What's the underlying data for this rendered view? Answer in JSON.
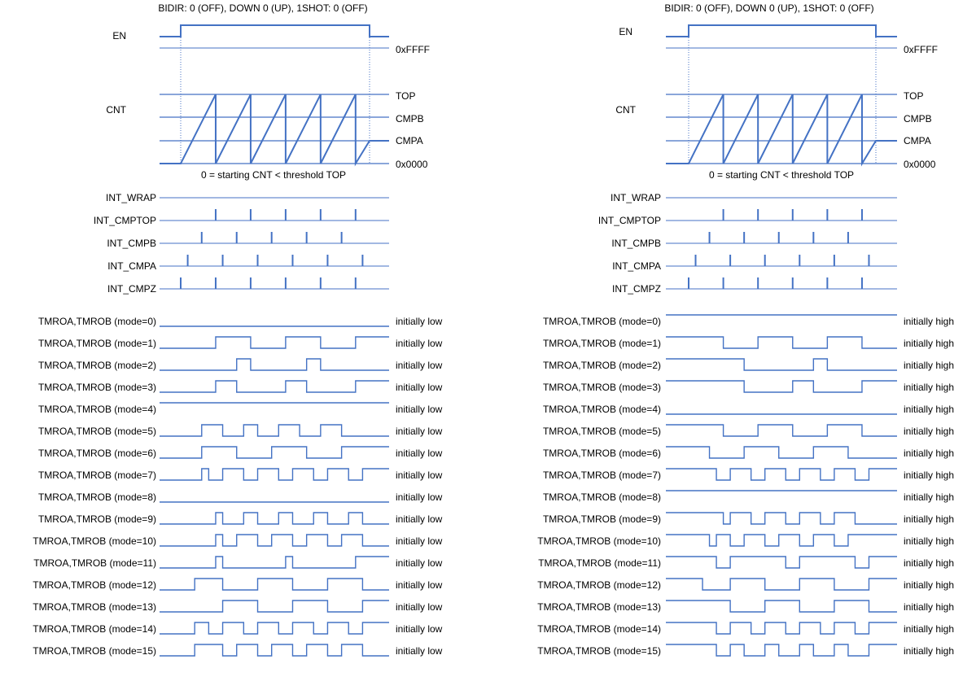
{
  "colors": {
    "trace": "#4472c4",
    "text": "#000000",
    "background": "#ffffff"
  },
  "panels": [
    {
      "id": "left",
      "header": "BIDIR: 0 (OFF), DOWN 0 (UP), 1SHOT: 0 (OFF)",
      "en_label": "EN",
      "cnt_label": "CNT",
      "levels": {
        "ffff": "0xFFFF",
        "top": "TOP",
        "cmpb": "CMPB",
        "cmpa": "CMPA",
        "zero": "0x0000"
      },
      "caption": "0 = starting CNT < threshold TOP",
      "interrupts": [
        {
          "label": "INT_WRAP",
          "ticks": []
        },
        {
          "label": "INT_CMPTOP",
          "ticks": [
            5,
            10,
            15,
            20,
            25
          ]
        },
        {
          "label": "INT_CMPB",
          "ticks": [
            3,
            8,
            13,
            18,
            23
          ]
        },
        {
          "label": "INT_CMPA",
          "ticks": [
            1,
            6,
            11,
            16,
            21,
            26
          ]
        },
        {
          "label": "INT_CMPZ",
          "ticks": [
            0,
            5,
            10,
            15,
            20,
            25
          ]
        }
      ],
      "outputs": [
        {
          "label": "TMROA,TMROB (mode=0)",
          "note": "initially low",
          "initial": 0,
          "toggles": []
        },
        {
          "label": "TMROA,TMROB (mode=1)",
          "note": "initially low",
          "initial": 0,
          "toggles": [
            5,
            10,
            15,
            20,
            25
          ]
        },
        {
          "label": "TMROA,TMROB (mode=2)",
          "note": "initially low",
          "initial": 0,
          "toggles": [
            8,
            10,
            18,
            20
          ]
        },
        {
          "label": "TMROA,TMROB (mode=3)",
          "note": "initially low",
          "initial": 0,
          "toggles": [
            5,
            8,
            15,
            18,
            25
          ]
        },
        {
          "label": "TMROA,TMROB (mode=4)",
          "note": "initially low",
          "initial": 1,
          "toggles": []
        },
        {
          "label": "TMROA,TMROB (mode=5)",
          "note": "initially low",
          "initial": 0,
          "toggles": [
            3,
            6,
            9,
            11,
            14,
            17,
            20,
            23
          ]
        },
        {
          "label": "TMROA,TMROB (mode=6)",
          "note": "initially low",
          "initial": 0,
          "toggles": [
            3,
            8,
            13,
            18,
            23
          ]
        },
        {
          "label": "TMROA,TMROB (mode=7)",
          "note": "initially low",
          "initial": 0,
          "toggles": [
            3,
            4,
            6,
            9,
            11,
            14,
            16,
            19,
            21,
            24,
            26
          ]
        },
        {
          "label": "TMROA,TMROB (mode=8)",
          "note": "initially low",
          "initial": 0,
          "toggles": []
        },
        {
          "label": "TMROA,TMROB (mode=9)",
          "note": "initially low",
          "initial": 0,
          "toggles": [
            5,
            6,
            9,
            11,
            14,
            16,
            19,
            21,
            24,
            26
          ]
        },
        {
          "label": "TMROA,TMROB (mode=10)",
          "note": "initially low",
          "initial": 0,
          "toggles": [
            5,
            6,
            8,
            11,
            13,
            16,
            18,
            21,
            23,
            26
          ]
        },
        {
          "label": "TMROA,TMROB (mode=11)",
          "note": "initially low",
          "initial": 0,
          "toggles": [
            5,
            6,
            15,
            16,
            25
          ]
        },
        {
          "label": "TMROA,TMROB (mode=12)",
          "note": "initially low",
          "initial": 0,
          "toggles": [
            2,
            6,
            11,
            16,
            21,
            26
          ]
        },
        {
          "label": "TMROA,TMROB (mode=13)",
          "note": "initially low",
          "initial": 0,
          "toggles": [
            6,
            11,
            16,
            21,
            26
          ]
        },
        {
          "label": "TMROA,TMROB (mode=14)",
          "note": "initially low",
          "initial": 0,
          "toggles": [
            2,
            4,
            6,
            9,
            11,
            14,
            16,
            19,
            21,
            24,
            26
          ]
        },
        {
          "label": "TMROA,TMROB (mode=15)",
          "note": "initially low",
          "initial": 0,
          "toggles": [
            2,
            6,
            8,
            11,
            13,
            16,
            18,
            21,
            23,
            26
          ]
        }
      ]
    },
    {
      "id": "right",
      "header": "BIDIR: 0 (OFF), DOWN 0 (UP), 1SHOT: 0 (OFF)",
      "en_label": "EN",
      "cnt_label": "CNT",
      "levels": {
        "ffff": "0xFFFF",
        "top": "TOP",
        "cmpb": "CMPB",
        "cmpa": "CMPA",
        "zero": "0x0000"
      },
      "caption": "0 = starting CNT < threshold TOP",
      "interrupts": [
        {
          "label": "INT_WRAP",
          "ticks": []
        },
        {
          "label": "INT_CMPTOP",
          "ticks": [
            5,
            10,
            15,
            20,
            25
          ]
        },
        {
          "label": "INT_CMPB",
          "ticks": [
            3,
            8,
            13,
            18,
            23
          ]
        },
        {
          "label": "INT_CMPA",
          "ticks": [
            1,
            6,
            11,
            16,
            21,
            26
          ]
        },
        {
          "label": "INT_CMPZ",
          "ticks": [
            0,
            5,
            10,
            15,
            20,
            25
          ]
        }
      ],
      "outputs": [
        {
          "label": "TMROA,TMROB (mode=0)",
          "note": "initially high",
          "initial": 1,
          "toggles": []
        },
        {
          "label": "TMROA,TMROB (mode=1)",
          "note": "initially high",
          "initial": 1,
          "toggles": [
            5,
            10,
            15,
            20,
            25
          ]
        },
        {
          "label": "TMROA,TMROB (mode=2)",
          "note": "initially high",
          "initial": 1,
          "toggles": [
            8,
            18,
            20
          ]
        },
        {
          "label": "TMROA,TMROB (mode=3)",
          "note": "initially high",
          "initial": 1,
          "toggles": [
            8,
            15,
            18,
            25
          ]
        },
        {
          "label": "TMROA,TMROB (mode=4)",
          "note": "initially high",
          "initial": 0,
          "toggles": []
        },
        {
          "label": "TMROA,TMROB (mode=5)",
          "note": "initially high",
          "initial": 1,
          "toggles": [
            5,
            10,
            15,
            20,
            25
          ]
        },
        {
          "label": "TMROA,TMROB (mode=6)",
          "note": "initially high",
          "initial": 1,
          "toggles": [
            3,
            8,
            13,
            18,
            23
          ]
        },
        {
          "label": "TMROA,TMROB (mode=7)",
          "note": "initially high",
          "initial": 1,
          "toggles": [
            4,
            6,
            9,
            11,
            14,
            16,
            19,
            21,
            24,
            26
          ]
        },
        {
          "label": "TMROA,TMROB (mode=8)",
          "note": "initially high",
          "initial": 1,
          "toggles": []
        },
        {
          "label": "TMROA,TMROB (mode=9)",
          "note": "initially high",
          "initial": 1,
          "toggles": [
            5,
            6,
            9,
            11,
            14,
            16,
            19,
            21,
            24
          ]
        },
        {
          "label": "TMROA,TMROB (mode=10)",
          "note": "initially high",
          "initial": 1,
          "toggles": [
            3,
            4,
            6,
            8,
            11,
            13,
            16,
            18,
            21,
            23
          ]
        },
        {
          "label": "TMROA,TMROB (mode=11)",
          "note": "initially high",
          "initial": 1,
          "toggles": [
            4,
            6,
            14,
            16,
            24,
            26
          ]
        },
        {
          "label": "TMROA,TMROB (mode=12)",
          "note": "initially high",
          "initial": 1,
          "toggles": [
            2,
            6,
            11,
            16,
            21,
            26
          ]
        },
        {
          "label": "TMROA,TMROB (mode=13)",
          "note": "initially high",
          "initial": 1,
          "toggles": [
            6,
            11,
            16,
            21,
            26
          ]
        },
        {
          "label": "TMROA,TMROB (mode=14)",
          "note": "initially high",
          "initial": 1,
          "toggles": [
            4,
            6,
            9,
            11,
            14,
            16,
            19,
            21,
            24,
            26
          ]
        },
        {
          "label": "TMROA,TMROB (mode=15)",
          "note": "initially high",
          "initial": 1,
          "toggles": [
            4,
            6,
            8,
            11,
            13,
            16,
            18,
            21,
            23,
            26
          ]
        }
      ]
    }
  ]
}
